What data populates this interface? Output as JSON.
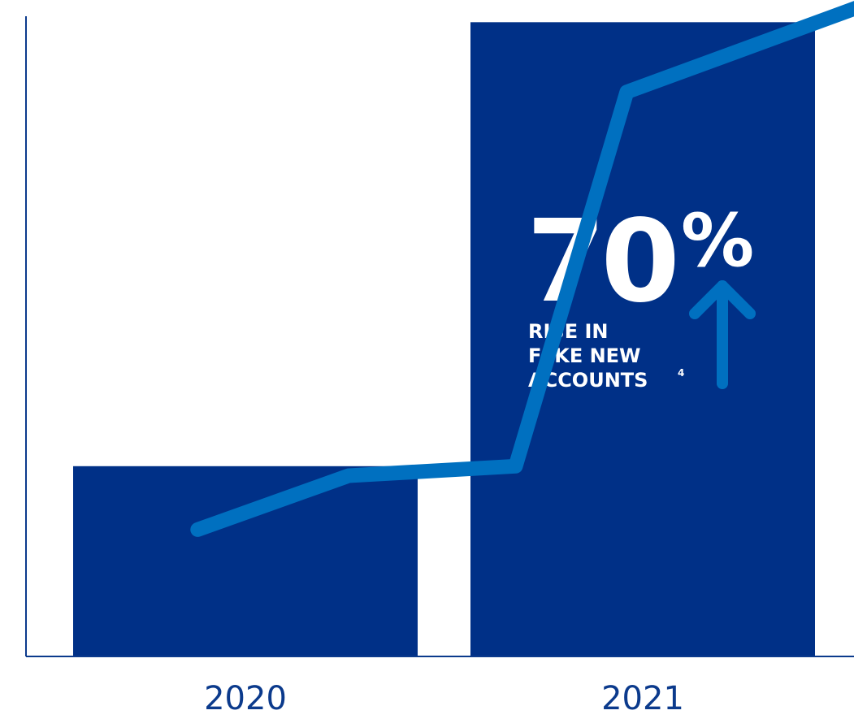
{
  "chart_data": {
    "type": "bar",
    "categories": [
      "2020",
      "2021"
    ],
    "bar_values": [
      30,
      100
    ],
    "line": {
      "x": [
        -0.12,
        0.26,
        0.68,
        0.96,
        1.57
      ],
      "values": [
        20,
        28.5,
        30,
        89,
        103
      ]
    },
    "ylim": [
      0,
      103.5
    ],
    "grid": false,
    "legend": "none",
    "colors": {
      "bars": "#003087",
      "line": "#0070C0",
      "axis": "#0b3a8c",
      "callout_text": "#ffffff",
      "arrow": "#0070C0"
    },
    "annotation": {
      "big": "70",
      "percent": "%",
      "lines": [
        "RISE IN",
        "FAKE NEW",
        "ACCOUNTS"
      ],
      "superscript": "4",
      "arrow_icon": "arrow-up-icon"
    }
  }
}
